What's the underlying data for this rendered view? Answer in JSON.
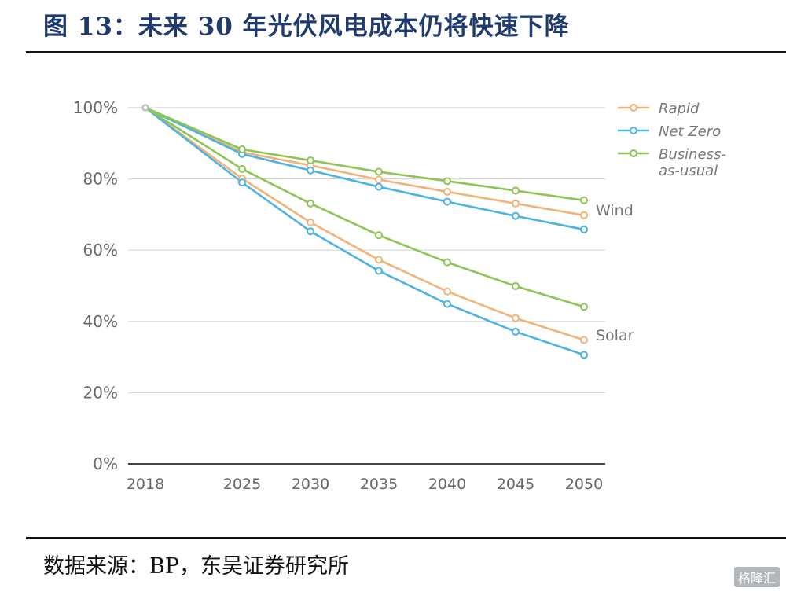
{
  "figure": {
    "title": "图 13：未来 30 年光伏风电成本仍将快速下降",
    "source": "数据来源：BP，东吴证券研究所"
  },
  "watermark": {
    "text": "格隆汇"
  },
  "chart_data": {
    "type": "line",
    "title": "",
    "xlabel": "",
    "ylabel": "",
    "x": [
      "2018",
      "2025",
      "2030",
      "2035",
      "2040",
      "2045",
      "2050"
    ],
    "y_ticks": [
      "0%",
      "20%",
      "40%",
      "60%",
      "80%",
      "100%"
    ],
    "ylim": [
      0,
      100
    ],
    "grid": "horizontal",
    "legend_position": "top-right",
    "legend": [
      "Rapid",
      "Net Zero",
      "Business-as-usual"
    ],
    "groups": [
      "Wind",
      "Solar"
    ],
    "series": [
      {
        "name": "Rapid",
        "group": "Wind",
        "color": "#f2b277",
        "values": [
          100,
          87.5,
          83.8,
          79.8,
          76.4,
          73.1,
          69.8
        ]
      },
      {
        "name": "Net Zero",
        "group": "Wind",
        "color": "#4bb3e3",
        "values": [
          100,
          87.0,
          82.4,
          77.8,
          73.6,
          69.6,
          65.8
        ]
      },
      {
        "name": "Business-as-usual",
        "group": "Wind",
        "color": "#8dc453",
        "values": [
          100,
          88.3,
          85.2,
          82.0,
          79.4,
          76.7,
          74.0
        ]
      },
      {
        "name": "Rapid",
        "group": "Solar",
        "color": "#f2b277",
        "values": [
          100,
          80.1,
          67.8,
          57.3,
          48.4,
          40.9,
          34.8
        ]
      },
      {
        "name": "Net Zero",
        "group": "Solar",
        "color": "#4bb3e3",
        "values": [
          100,
          79.0,
          65.3,
          54.2,
          44.9,
          37.1,
          30.6
        ]
      },
      {
        "name": "Business-as-usual",
        "group": "Solar",
        "color": "#8dc453",
        "values": [
          100,
          82.8,
          73.1,
          64.2,
          56.6,
          49.9,
          44.1
        ]
      }
    ]
  }
}
